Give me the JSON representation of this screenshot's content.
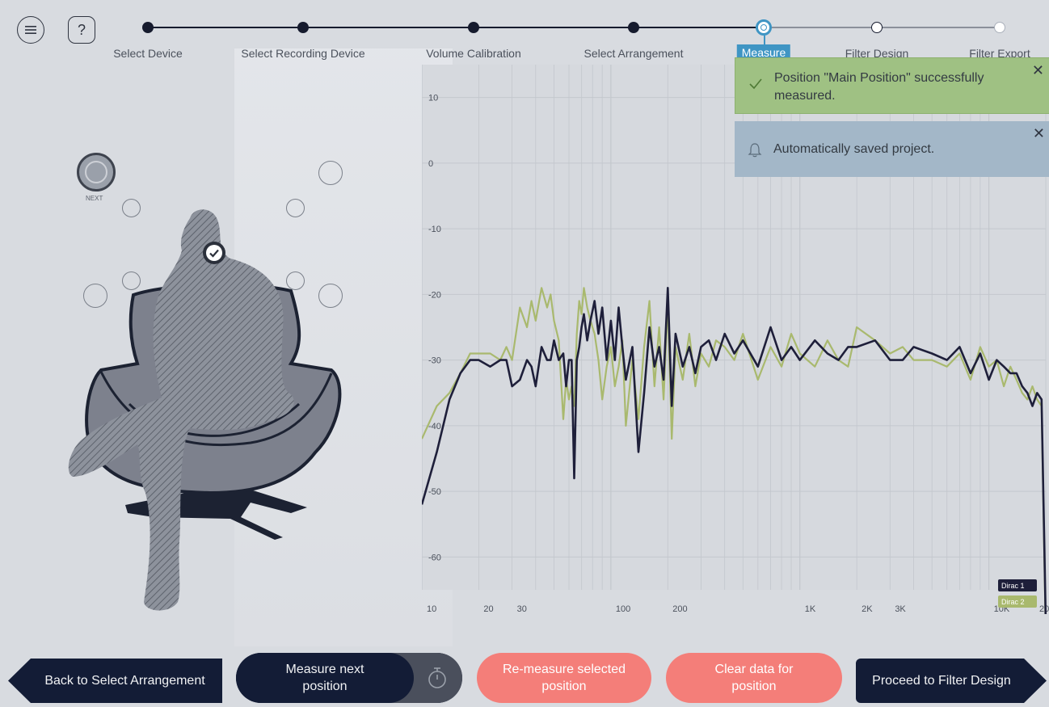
{
  "steps": [
    {
      "label": "Select Device",
      "state": "done"
    },
    {
      "label": "Select Recording Device",
      "state": "done"
    },
    {
      "label": "Volume Calibration",
      "state": "done"
    },
    {
      "label": "Select Arrangement",
      "state": "done"
    },
    {
      "label": "Measure",
      "state": "current"
    },
    {
      "label": "Filter Design",
      "state": "open"
    },
    {
      "label": "Filter Export",
      "state": "future"
    }
  ],
  "toolbar": {
    "menu_icon": "menu-icon",
    "help_label": "?"
  },
  "positions": {
    "next_label": "NEXT",
    "measured_count": 1
  },
  "notifications": {
    "success": "Position \"Main Position\" successfully measured.",
    "info": "Automatically saved project."
  },
  "chart_data": {
    "type": "line",
    "xscale": "log",
    "xlim": [
      10,
      20000
    ],
    "ylim": [
      -65,
      15
    ],
    "x_ticks": [
      "10",
      "20",
      "30",
      "100",
      "200",
      "1K",
      "2K",
      "3K",
      "10K",
      "20"
    ],
    "y_ticks": [
      "10",
      "0",
      "-10",
      "-20",
      "-30",
      "-40",
      "-50",
      "-60"
    ],
    "legend": [
      "Dirac 1",
      "Dirac 2"
    ],
    "series": [
      {
        "name": "Dirac 1",
        "color": "#1e1f3a",
        "x": [
          10,
          12,
          14,
          16,
          18,
          20,
          23,
          26,
          28,
          30,
          33,
          36,
          38,
          40,
          43,
          46,
          48,
          50,
          53,
          56,
          58,
          60,
          62,
          64,
          66,
          68,
          70,
          72,
          75,
          78,
          82,
          86,
          90,
          95,
          100,
          105,
          110,
          115,
          120,
          130,
          140,
          150,
          160,
          170,
          180,
          190,
          200,
          210,
          220,
          240,
          260,
          280,
          300,
          330,
          360,
          400,
          450,
          500,
          600,
          700,
          800,
          900,
          1000,
          1200,
          1400,
          1600,
          1800,
          2000,
          2500,
          3000,
          3500,
          4000,
          5000,
          6000,
          7000,
          8000,
          9000,
          10000,
          11000,
          12000,
          13000,
          14000,
          15000,
          16000,
          17000,
          18000,
          19000,
          20000
        ],
        "y": [
          -52,
          -44,
          -36,
          -32,
          -30,
          -30,
          -31,
          -30,
          -30,
          -34,
          -33,
          -30,
          -31,
          -34,
          -28,
          -30,
          -30,
          -27,
          -30,
          -29,
          -34,
          -30,
          -30,
          -48,
          -30,
          -28,
          -25,
          -23,
          -27,
          -24,
          -21,
          -26,
          -22,
          -30,
          -24,
          -30,
          -22,
          -28,
          -33,
          -28,
          -44,
          -35,
          -25,
          -31,
          -28,
          -33,
          -19,
          -37,
          -26,
          -31,
          -28,
          -32,
          -28,
          -27,
          -30,
          -26,
          -29,
          -27,
          -31,
          -25,
          -30,
          -28,
          -30,
          -27,
          -29,
          -30,
          -28,
          -28,
          -27,
          -30,
          -30,
          -28,
          -29,
          -30,
          -28,
          -32,
          -29,
          -33,
          -30,
          -31,
          -32,
          -32,
          -34,
          -35,
          -37,
          -35,
          -36,
          -70
        ]
      },
      {
        "name": "Dirac 2",
        "color": "#a9b96e",
        "x": [
          10,
          12,
          14,
          16,
          18,
          20,
          23,
          26,
          28,
          30,
          33,
          36,
          38,
          40,
          43,
          46,
          48,
          50,
          53,
          56,
          58,
          60,
          62,
          64,
          66,
          68,
          70,
          72,
          75,
          78,
          82,
          86,
          90,
          95,
          100,
          105,
          110,
          115,
          120,
          130,
          140,
          150,
          160,
          170,
          180,
          190,
          200,
          210,
          220,
          240,
          260,
          280,
          300,
          330,
          360,
          400,
          450,
          500,
          600,
          700,
          800,
          900,
          1000,
          1200,
          1400,
          1600,
          1800,
          2000,
          2500,
          3000,
          3500,
          4000,
          5000,
          6000,
          7000,
          8000,
          9000,
          10000,
          11000,
          12000,
          13000,
          14000,
          15000,
          16000,
          17000,
          18000,
          19000,
          20000
        ],
        "y": [
          -42,
          -37,
          -35,
          -32,
          -29,
          -29,
          -29,
          -30,
          -28,
          -30,
          -22,
          -25,
          -21,
          -24,
          -19,
          -22,
          -20,
          -24,
          -27,
          -39,
          -33,
          -36,
          -34,
          -37,
          -26,
          -21,
          -23,
          -19,
          -22,
          -24,
          -26,
          -30,
          -36,
          -31,
          -28,
          -34,
          -31,
          -27,
          -40,
          -30,
          -39,
          -28,
          -21,
          -34,
          -25,
          -36,
          -21,
          -42,
          -28,
          -33,
          -26,
          -34,
          -29,
          -31,
          -27,
          -28,
          -30,
          -26,
          -33,
          -28,
          -31,
          -26,
          -29,
          -31,
          -27,
          -30,
          -31,
          -25,
          -27,
          -29,
          -28,
          -30,
          -30,
          -31,
          -29,
          -33,
          -28,
          -31,
          -30,
          -34,
          -31,
          -33,
          -35,
          -36,
          -34,
          -36,
          -37,
          -72
        ]
      }
    ]
  },
  "buttons": {
    "back": "Back to Select Arrangement",
    "measure_next": "Measure next position",
    "remeasure": "Re-measure selected position",
    "clear": "Clear data for position",
    "proceed": "Proceed to Filter Design"
  }
}
